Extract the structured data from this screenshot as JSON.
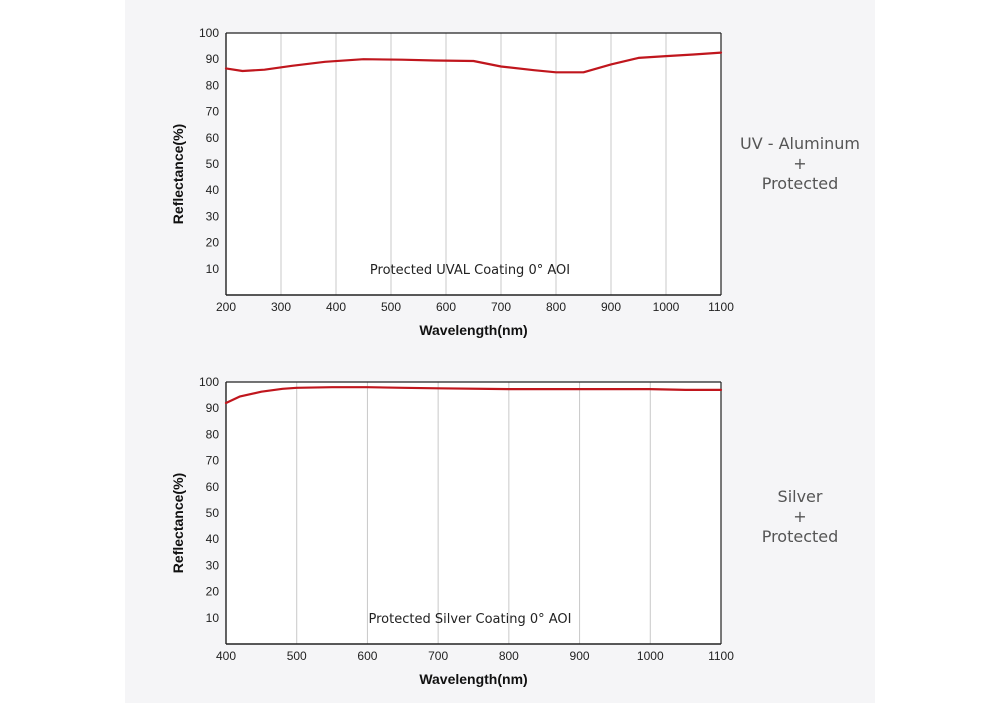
{
  "chart_data": [
    {
      "type": "line",
      "xlabel": "Wavelength(nm)",
      "ylabel": "Reflectance(%)",
      "annotation": "Protected UVAL Coating  0°  AOI",
      "side_label": [
        "UV - Aluminum",
        "+",
        "Protected"
      ],
      "xlim": [
        200,
        1100
      ],
      "ylim": [
        0,
        100
      ],
      "x_ticks": [
        200,
        300,
        400,
        500,
        600,
        700,
        800,
        900,
        1000,
        1100
      ],
      "y_ticks": [
        10,
        20,
        30,
        40,
        50,
        60,
        70,
        80,
        90,
        100
      ],
      "grid": "vertical",
      "line_color": "#c0161d",
      "series": [
        {
          "x": [
            200,
            230,
            270,
            320,
            380,
            450,
            520,
            580,
            650,
            700,
            760,
            800,
            850,
            900,
            950,
            1000,
            1050,
            1100
          ],
          "y": [
            86.5,
            85.5,
            86,
            87.5,
            89,
            90,
            89.8,
            89.5,
            89.3,
            87.2,
            85.8,
            85,
            85,
            88,
            90.5,
            91.2,
            91.8,
            92.5
          ]
        }
      ]
    },
    {
      "type": "line",
      "xlabel": "Wavelength(nm)",
      "ylabel": "Reflectance(%)",
      "annotation": "Protected Silver Coating  0°  AOI",
      "side_label": [
        "Silver",
        "+",
        "Protected"
      ],
      "xlim": [
        400,
        1100
      ],
      "ylim": [
        0,
        100
      ],
      "x_ticks": [
        400,
        500,
        600,
        700,
        800,
        900,
        1000,
        1100
      ],
      "y_ticks": [
        10,
        20,
        30,
        40,
        50,
        60,
        70,
        80,
        90,
        100
      ],
      "grid": "vertical",
      "line_color": "#c0161d",
      "series": [
        {
          "x": [
            400,
            420,
            450,
            480,
            500,
            550,
            600,
            650,
            700,
            800,
            900,
            1000,
            1050,
            1100
          ],
          "y": [
            92,
            94.5,
            96.3,
            97.4,
            97.8,
            98,
            98,
            97.8,
            97.6,
            97.3,
            97.3,
            97.3,
            97,
            97
          ]
        }
      ]
    }
  ]
}
